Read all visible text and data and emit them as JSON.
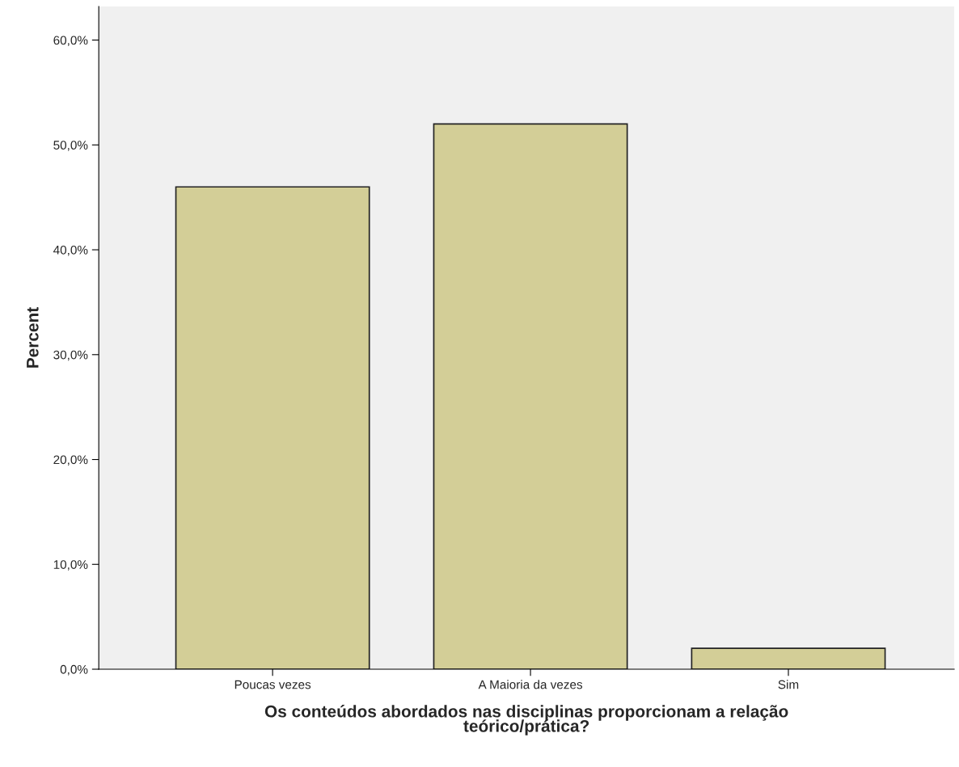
{
  "chart_data": {
    "type": "bar",
    "xlabel": "Os conteúdos abordados nas disciplinas proporcionam a relação\nteórico/prática?",
    "ylabel": "Percent",
    "categories": [
      "Poucas vezes",
      "A Maioria da vezes",
      "Sim"
    ],
    "values": [
      46.0,
      52.0,
      2.0
    ],
    "color": "#d3ce97",
    "ylim": [
      0,
      63.2
    ],
    "yticks": [
      {
        "value": 0,
        "label": "0,0%"
      },
      {
        "value": 10,
        "label": "10,0%"
      },
      {
        "value": 20,
        "label": "20,0%"
      },
      {
        "value": 30,
        "label": "30,0%"
      },
      {
        "value": 40,
        "label": "40,0%"
      },
      {
        "value": 50,
        "label": "50,0%"
      },
      {
        "value": 60,
        "label": "60,0%"
      }
    ],
    "grid": false,
    "legend": false
  }
}
